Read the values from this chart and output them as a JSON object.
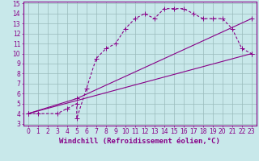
{
  "line1_x": [
    0,
    1,
    3,
    4,
    5,
    5,
    6,
    7,
    8,
    9,
    10,
    11,
    12,
    13,
    14,
    15,
    16,
    17,
    18,
    19,
    20,
    21,
    22,
    23
  ],
  "line1_y": [
    4,
    4,
    4,
    4.5,
    5,
    3.5,
    6.5,
    9.5,
    10.5,
    11,
    12.5,
    13.5,
    14,
    13.5,
    14.5,
    14.5,
    14.5,
    14,
    13.5,
    13.5,
    13.5,
    12.5,
    10.5,
    10
  ],
  "line2_x": [
    0,
    23
  ],
  "line2_y": [
    4,
    10
  ],
  "line3_x": [
    0,
    5,
    23
  ],
  "line3_y": [
    4,
    5.5,
    13.5
  ],
  "line_color": "#880088",
  "bg_color": "#c8e8ea",
  "grid_color": "#99bbbb",
  "markersize": 2.5,
  "linewidth": 0.8,
  "xlabel": "Windchill (Refroidissement éolien,°C)",
  "xlim": [
    0,
    23
  ],
  "ylim": [
    3,
    15
  ],
  "xticks": [
    0,
    1,
    2,
    3,
    4,
    5,
    6,
    7,
    8,
    9,
    10,
    11,
    12,
    13,
    14,
    15,
    16,
    17,
    18,
    19,
    20,
    21,
    22,
    23
  ],
  "yticks": [
    3,
    4,
    5,
    6,
    7,
    8,
    9,
    10,
    11,
    12,
    13,
    14,
    15
  ],
  "xlabel_fontsize": 6.5,
  "tick_fontsize": 5.5
}
